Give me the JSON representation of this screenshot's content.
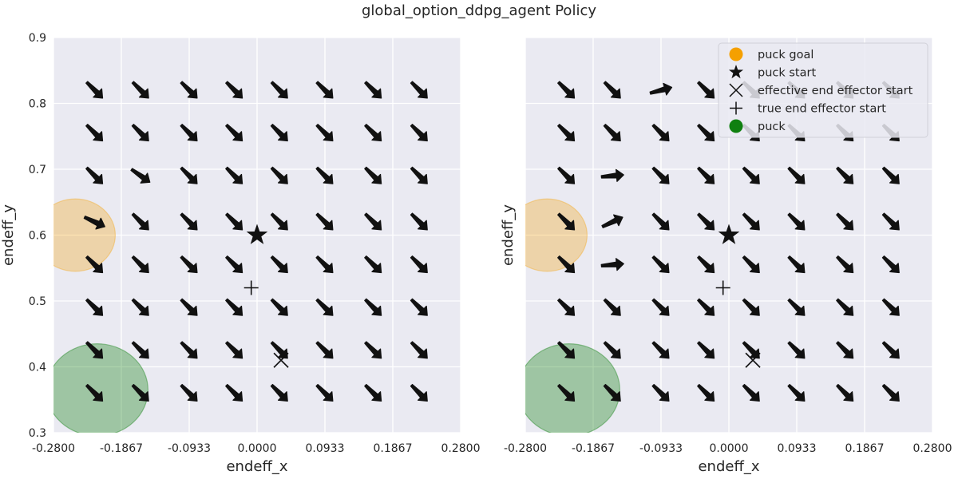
{
  "figure": {
    "title": "global_option_ddpg_agent Policy"
  },
  "colors": {
    "axes_bg": "#eaeaf2",
    "grid": "#ffffff",
    "goal": "#f5a000",
    "puck": "#108010",
    "arrow": "#111111",
    "text": "#262626"
  },
  "chart_data": [
    {
      "type": "quiver",
      "panel": "left",
      "xlabel": "endeff_x",
      "ylabel": "endeff_y",
      "xlim": [
        -0.28,
        0.28
      ],
      "ylim": [
        0.3,
        0.9
      ],
      "xticks": [
        "-0.2800",
        "-0.1867",
        "-0.0933",
        "0.0000",
        "0.0933",
        "0.1867",
        "0.2800"
      ],
      "yticks": [
        "0.3",
        "0.4",
        "0.5",
        "0.6",
        "0.7",
        "0.8",
        "0.9"
      ],
      "show_yticks": true,
      "grid": true,
      "grid_x": [
        -0.2233,
        -0.16,
        -0.0933,
        -0.0311,
        0.0311,
        0.0933,
        0.16,
        0.2233
      ],
      "grid_y": [
        0.36,
        0.425,
        0.49,
        0.555,
        0.62,
        0.69,
        0.755,
        0.82
      ],
      "arrow_angles_deg": [
        [
          -45,
          -45,
          -45,
          -45,
          -45,
          -45,
          -45,
          -45
        ],
        [
          -45,
          -45,
          -45,
          -45,
          -45,
          -45,
          -45,
          -45
        ],
        [
          -45,
          -45,
          -45,
          -45,
          -45,
          -45,
          -45,
          -45
        ],
        [
          -45,
          -45,
          -45,
          -45,
          -45,
          -45,
          -45,
          -45
        ],
        [
          -25,
          -45,
          -45,
          -45,
          -45,
          -45,
          -45,
          -45
        ],
        [
          -45,
          -35,
          -45,
          -45,
          -45,
          -45,
          -45,
          -45
        ],
        [
          -45,
          -45,
          -45,
          -45,
          -45,
          -45,
          -45,
          -45
        ],
        [
          -45,
          -45,
          -45,
          -45,
          -45,
          -45,
          -45,
          -45
        ]
      ],
      "points": {
        "puck_goal": [
          -0.25,
          0.6
        ],
        "puck_goal_radius": 0.055,
        "puck": [
          -0.22,
          0.365
        ],
        "puck_radius": 0.07,
        "puck_start": [
          0.0,
          0.6
        ],
        "true_end_effector_start": [
          -0.008,
          0.52
        ],
        "effective_end_effector_start": [
          0.033,
          0.41
        ]
      },
      "legend": null
    },
    {
      "type": "quiver",
      "panel": "right",
      "xlabel": "endeff_x",
      "ylabel": "endeff_y",
      "xlim": [
        -0.28,
        0.28
      ],
      "ylim": [
        0.3,
        0.9
      ],
      "xticks": [
        "-0.2800",
        "-0.1867",
        "-0.0933",
        "0.0000",
        "0.0933",
        "0.1867",
        "0.2800"
      ],
      "yticks": [
        "0.3",
        "0.4",
        "0.5",
        "0.6",
        "0.7",
        "0.8",
        "0.9"
      ],
      "show_yticks": false,
      "grid": true,
      "grid_x": [
        -0.2233,
        -0.16,
        -0.0933,
        -0.0311,
        0.0311,
        0.0933,
        0.16,
        0.2233
      ],
      "grid_y": [
        0.36,
        0.425,
        0.49,
        0.555,
        0.62,
        0.69,
        0.755,
        0.82
      ],
      "arrow_angles_deg": [
        [
          -45,
          -45,
          -45,
          -45,
          -45,
          -45,
          -45,
          -45
        ],
        [
          -45,
          -45,
          -45,
          -45,
          -45,
          -45,
          -45,
          -45
        ],
        [
          -45,
          -45,
          -45,
          -45,
          -45,
          -45,
          -45,
          -45
        ],
        [
          -45,
          5,
          -45,
          -45,
          -45,
          -45,
          -45,
          -45
        ],
        [
          -45,
          25,
          -45,
          -45,
          -45,
          -45,
          -45,
          -45
        ],
        [
          -45,
          5,
          -45,
          -45,
          -45,
          -45,
          -45,
          -45
        ],
        [
          -45,
          -45,
          -45,
          -45,
          -45,
          -45,
          -45,
          -45
        ],
        [
          -45,
          -45,
          15,
          -45,
          -45,
          -45,
          -45,
          -45
        ]
      ],
      "points": {
        "puck_goal": [
          -0.25,
          0.6
        ],
        "puck_goal_radius": 0.055,
        "puck": [
          -0.22,
          0.365
        ],
        "puck_radius": 0.07,
        "puck_start": [
          0.0,
          0.6
        ],
        "true_end_effector_start": [
          -0.008,
          0.52
        ],
        "effective_end_effector_start": [
          0.033,
          0.41
        ]
      },
      "legend": {
        "placement": "top-right",
        "entries": [
          {
            "label": "puck goal",
            "marker": "circle-orange"
          },
          {
            "label": "puck start",
            "marker": "star"
          },
          {
            "label": "effective end effector start",
            "marker": "x"
          },
          {
            "label": "true end effector start",
            "marker": "plus"
          },
          {
            "label": "puck",
            "marker": "circle-green"
          }
        ]
      }
    }
  ]
}
